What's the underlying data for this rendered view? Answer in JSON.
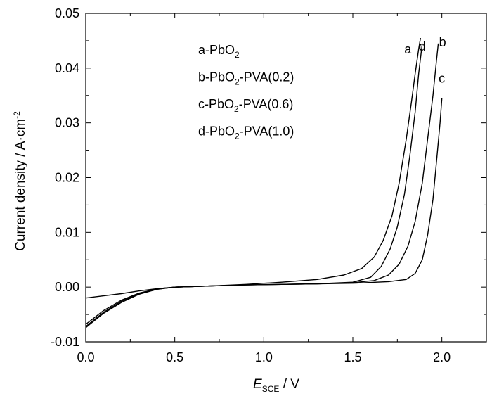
{
  "chart_data": {
    "type": "line",
    "title": "",
    "xlabel": {
      "main": "E",
      "sub": "SCE",
      "unit": " / V"
    },
    "ylabel": {
      "main": "Current density / A·cm",
      "sup": "-2"
    },
    "xlim": [
      0.0,
      2.25
    ],
    "ylim": [
      -0.01,
      0.05
    ],
    "x_ticks": [
      0.0,
      0.5,
      1.0,
      1.5,
      2.0
    ],
    "x_tick_labels": [
      "0.0",
      "0.5",
      "1.0",
      "1.5",
      "2.0"
    ],
    "y_ticks": [
      -0.01,
      0.0,
      0.01,
      0.02,
      0.03,
      0.04,
      0.05
    ],
    "y_tick_labels": [
      "-0.01",
      "0.00",
      "0.01",
      "0.02",
      "0.03",
      "0.04",
      "0.05"
    ],
    "grid": false,
    "legend_position": "top-center",
    "legend": [
      {
        "parts": [
          [
            "a-PbO",
            ""
          ],
          [
            "2",
            "sub"
          ]
        ]
      },
      {
        "parts": [
          [
            "b-PbO",
            ""
          ],
          [
            "2",
            "sub"
          ],
          [
            "-PVA(0.2)",
            ""
          ]
        ]
      },
      {
        "parts": [
          [
            "c-PbO",
            ""
          ],
          [
            "2",
            "sub"
          ],
          [
            "-PVA(0.6)",
            ""
          ]
        ]
      },
      {
        "parts": [
          [
            "d-PbO",
            ""
          ],
          [
            "2",
            "sub"
          ],
          [
            "-PVA(1.0)",
            ""
          ]
        ]
      }
    ],
    "series": [
      {
        "label": "a",
        "color": "#000000",
        "x": [
          0.0,
          0.1,
          0.2,
          0.3,
          0.4,
          0.5,
          0.7,
          0.9,
          1.1,
          1.3,
          1.45,
          1.55,
          1.62,
          1.67,
          1.72,
          1.76,
          1.8,
          1.83,
          1.85,
          1.87,
          1.88
        ],
        "y": [
          -0.002,
          -0.0016,
          -0.0012,
          -0.0007,
          -0.0003,
          0.0,
          0.0002,
          0.0005,
          0.0009,
          0.0014,
          0.0022,
          0.0034,
          0.0055,
          0.0085,
          0.013,
          0.019,
          0.027,
          0.034,
          0.039,
          0.0435,
          0.0455
        ]
      },
      {
        "label": "b",
        "color": "#000000",
        "x": [
          0.0,
          0.1,
          0.2,
          0.3,
          0.4,
          0.5,
          0.7,
          0.9,
          1.1,
          1.3,
          1.5,
          1.62,
          1.7,
          1.76,
          1.81,
          1.85,
          1.89,
          1.92,
          1.95,
          1.97,
          1.98
        ],
        "y": [
          -0.0072,
          -0.0046,
          -0.0026,
          -0.0012,
          -0.0004,
          0.0,
          0.0002,
          0.0004,
          0.0005,
          0.0006,
          0.0008,
          0.0012,
          0.0022,
          0.0042,
          0.0075,
          0.012,
          0.019,
          0.027,
          0.035,
          0.0415,
          0.0445
        ]
      },
      {
        "label": "c",
        "color": "#000000",
        "x": [
          0.0,
          0.1,
          0.2,
          0.3,
          0.4,
          0.5,
          0.7,
          0.9,
          1.1,
          1.3,
          1.5,
          1.7,
          1.8,
          1.85,
          1.89,
          1.92,
          1.95,
          1.97,
          1.99,
          2.0
        ],
        "y": [
          -0.0074,
          -0.0048,
          -0.0028,
          -0.0013,
          -0.0004,
          0.0,
          0.0002,
          0.0004,
          0.0005,
          0.0006,
          0.0007,
          0.001,
          0.0014,
          0.0025,
          0.005,
          0.0095,
          0.016,
          0.023,
          0.03,
          0.0345
        ]
      },
      {
        "label": "d",
        "color": "#000000",
        "x": [
          0.0,
          0.1,
          0.2,
          0.3,
          0.4,
          0.5,
          0.7,
          0.9,
          1.1,
          1.3,
          1.5,
          1.6,
          1.66,
          1.71,
          1.75,
          1.79,
          1.82,
          1.85,
          1.87,
          1.89
        ],
        "y": [
          -0.0068,
          -0.0043,
          -0.0024,
          -0.0011,
          -0.0003,
          0.0,
          0.0002,
          0.0004,
          0.0005,
          0.0006,
          0.0009,
          0.0018,
          0.0038,
          0.007,
          0.011,
          0.017,
          0.024,
          0.032,
          0.039,
          0.0445
        ]
      }
    ]
  }
}
